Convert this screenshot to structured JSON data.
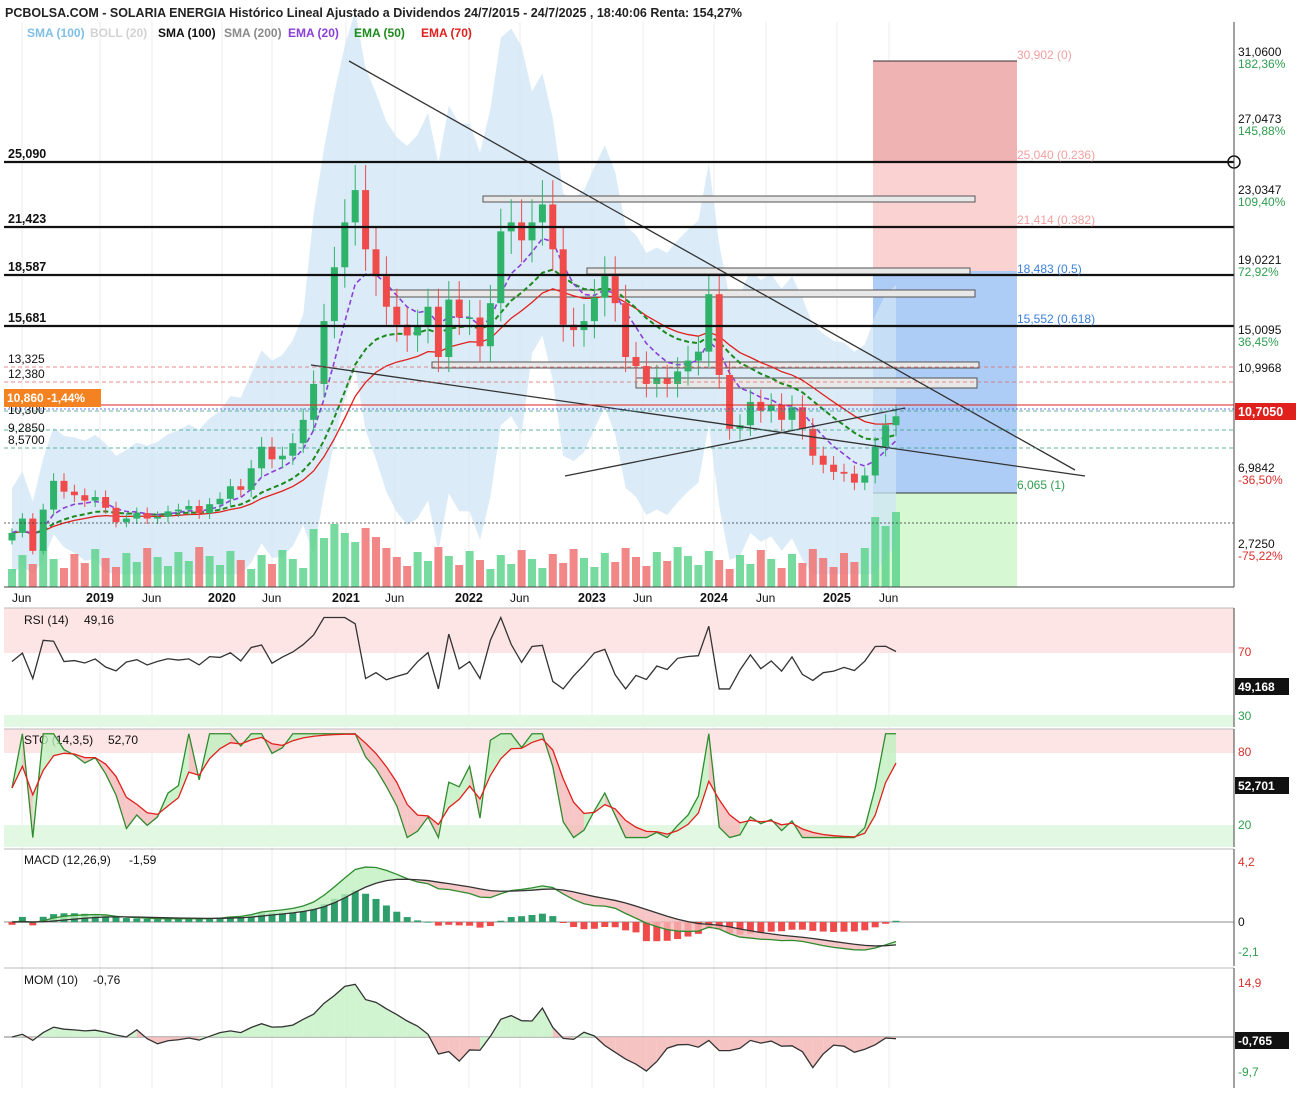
{
  "title": "PCBOLSA.COM - SOLARIA ENERGIA Histórico Lineal Ajustado a Dividendos 24/7/2015 - 24/7/2025 , 18:40:06 Renta: 154,27%",
  "legend": [
    {
      "label": "SMA (100)",
      "color": "#7fbfe6"
    },
    {
      "label": "BOLL (20)",
      "color": "#d2d2d2"
    },
    {
      "label": "SMA (100)",
      "color": "#111111"
    },
    {
      "label": "SMA (200)",
      "color": "#8a8a8a"
    },
    {
      "label": "EMA (20)",
      "color": "#8a3fd9"
    },
    {
      "label": "EMA (50)",
      "color": "#1e8a1e"
    },
    {
      "label": "EMA (70)",
      "color": "#e0201c"
    }
  ],
  "levels": [
    {
      "label": "25,090",
      "value": 25.09
    },
    {
      "label": "21,423",
      "value": 21.423
    },
    {
      "label": "18,587",
      "value": 18.587
    },
    {
      "label": "15,681",
      "value": 15.681
    }
  ],
  "small_levels": [
    {
      "label": "13,325",
      "value": 13.325
    },
    {
      "label": "12,380",
      "value": 12.38
    },
    {
      "label": "10,300",
      "value": 10.3
    },
    {
      "label": "9,2850",
      "value": 9.285
    },
    {
      "label": "8,5700",
      "value": 8.57
    }
  ],
  "current_tag": {
    "label": "10,860 -1,44%",
    "value": 10.86
  },
  "fib": [
    {
      "label": "30,902 (0)",
      "value": 30.902,
      "color": "#f0a0a0"
    },
    {
      "label": "25,040 (0.236)",
      "value": 25.04,
      "color": "#f0a0a0"
    },
    {
      "label": "21,414 (0.382)",
      "value": 21.414,
      "color": "#f0a0a0"
    },
    {
      "label": "18,483 (0.5)",
      "value": 18.483,
      "color": "#3b7fd9"
    },
    {
      "label": "15,552 (0.618)",
      "value": 15.552,
      "color": "#3b7fd9"
    },
    {
      "label": "6,065 (1)",
      "value": 6.065,
      "color": "#2e9e4f"
    }
  ],
  "price_axis": [
    {
      "label": "31,0600",
      "pct": "182,36%",
      "value": 31.06
    },
    {
      "label": "27,0473",
      "pct": "145,88%",
      "value": 27.0473
    },
    {
      "label": "23,0347",
      "pct": "109,40%",
      "value": 23.0347
    },
    {
      "label": "19,0221",
      "pct": "72,92%",
      "value": 19.0221
    },
    {
      "label": "15,0095",
      "pct": "36,45%",
      "value": 15.0095
    },
    {
      "label": "10,9968",
      "pct": "",
      "value": 10.9968
    },
    {
      "label": "6,9842",
      "pct": "-36,50%",
      "value": 6.9842
    },
    {
      "label": "2,7250",
      "pct": "-75,22%",
      "value": 2.725
    }
  ],
  "last_price": "10,7050",
  "time_axis": [
    "Jun",
    "2019",
    "Jun",
    "2020",
    "Jun",
    "2021",
    "Jun",
    "2022",
    "Jun",
    "2023",
    "Jun",
    "2024",
    "Jun",
    "2025",
    "Jun"
  ],
  "panels": {
    "rsi": {
      "label": "RSI (14)",
      "value": "49,16",
      "tag": "49,168",
      "levels": [
        "70",
        "30"
      ]
    },
    "sto": {
      "label": "STO (14,3,5)",
      "value": "52,70",
      "tag": "52,701",
      "levels": [
        "80",
        "20"
      ]
    },
    "macd": {
      "label": "MACD (12,26,9)",
      "value": "-1,59",
      "levels": [
        "4,2",
        "0",
        "-2,1"
      ]
    },
    "mom": {
      "label": "MOM (10)",
      "value": "-0,76",
      "tag": "-0,765",
      "levels": [
        "14,9",
        "-9,7"
      ]
    }
  },
  "chart_data": {
    "type": "candlestick",
    "period": "monthly",
    "x": [
      "2018-06",
      "2018-07",
      "2018-08",
      "2018-09",
      "2018-10",
      "2018-11",
      "2018-12",
      "2019-01",
      "2019-02",
      "2019-03",
      "2019-04",
      "2019-05",
      "2019-06",
      "2019-07",
      "2019-08",
      "2019-09",
      "2019-10",
      "2019-11",
      "2019-12",
      "2020-01",
      "2020-02",
      "2020-03",
      "2020-04",
      "2020-05",
      "2020-06",
      "2020-07",
      "2020-08",
      "2020-09",
      "2020-10",
      "2020-11",
      "2020-12",
      "2021-01",
      "2021-02",
      "2021-03",
      "2021-04",
      "2021-05",
      "2021-06",
      "2021-07",
      "2021-08",
      "2021-09",
      "2021-10",
      "2021-11",
      "2021-12",
      "2022-01",
      "2022-02",
      "2022-03",
      "2022-04",
      "2022-05",
      "2022-06",
      "2022-07",
      "2022-08",
      "2022-09",
      "2022-10",
      "2022-11",
      "2022-12",
      "2023-01",
      "2023-02",
      "2023-03",
      "2023-04",
      "2023-05",
      "2023-06",
      "2023-07",
      "2023-08",
      "2023-09",
      "2023-10",
      "2023-11",
      "2023-12",
      "2024-01",
      "2024-02",
      "2024-03",
      "2024-04",
      "2024-05",
      "2024-06",
      "2024-07",
      "2024-08",
      "2024-09",
      "2024-10",
      "2024-11",
      "2024-12",
      "2025-01",
      "2025-02",
      "2025-03",
      "2025-04",
      "2025-05",
      "2025-06",
      "2025-07"
    ],
    "close": [
      4.2,
      5.0,
      3.2,
      5.5,
      7.1,
      6.5,
      6.3,
      6.0,
      6.2,
      5.6,
      4.8,
      5.0,
      5.3,
      5.0,
      5.1,
      5.4,
      5.5,
      5.7,
      5.3,
      5.8,
      6.1,
      6.8,
      6.6,
      7.8,
      9.0,
      8.3,
      8.5,
      9.2,
      10.5,
      12.5,
      16.0,
      19.0,
      21.5,
      23.3,
      20.0,
      18.5,
      16.8,
      15.8,
      15.2,
      15.7,
      16.8,
      14.0,
      17.2,
      16.2,
      16.2,
      14.6,
      17.0,
      21.0,
      21.5,
      20.5,
      21.5,
      22.5,
      20.0,
      15.8,
      15.5,
      16.0,
      17.3,
      18.5,
      17.0,
      14.0,
      13.5,
      12.5,
      12.8,
      12.5,
      13.2,
      13.8,
      14.3,
      17.5,
      13.0,
      10.0,
      10.2,
      11.5,
      11.0,
      11.3,
      10.5,
      11.2,
      10.0,
      8.5,
      8.0,
      7.6,
      7.5,
      7.0,
      7.4,
      9.0,
      10.2,
      10.7
    ],
    "volume_colors": [
      "bull",
      "bear"
    ],
    "pattern_lines": [
      "descending trendline",
      "support trendline",
      "resistance zones"
    ],
    "last": 10.705,
    "ylim": [
      2.725,
      31.06
    ]
  }
}
